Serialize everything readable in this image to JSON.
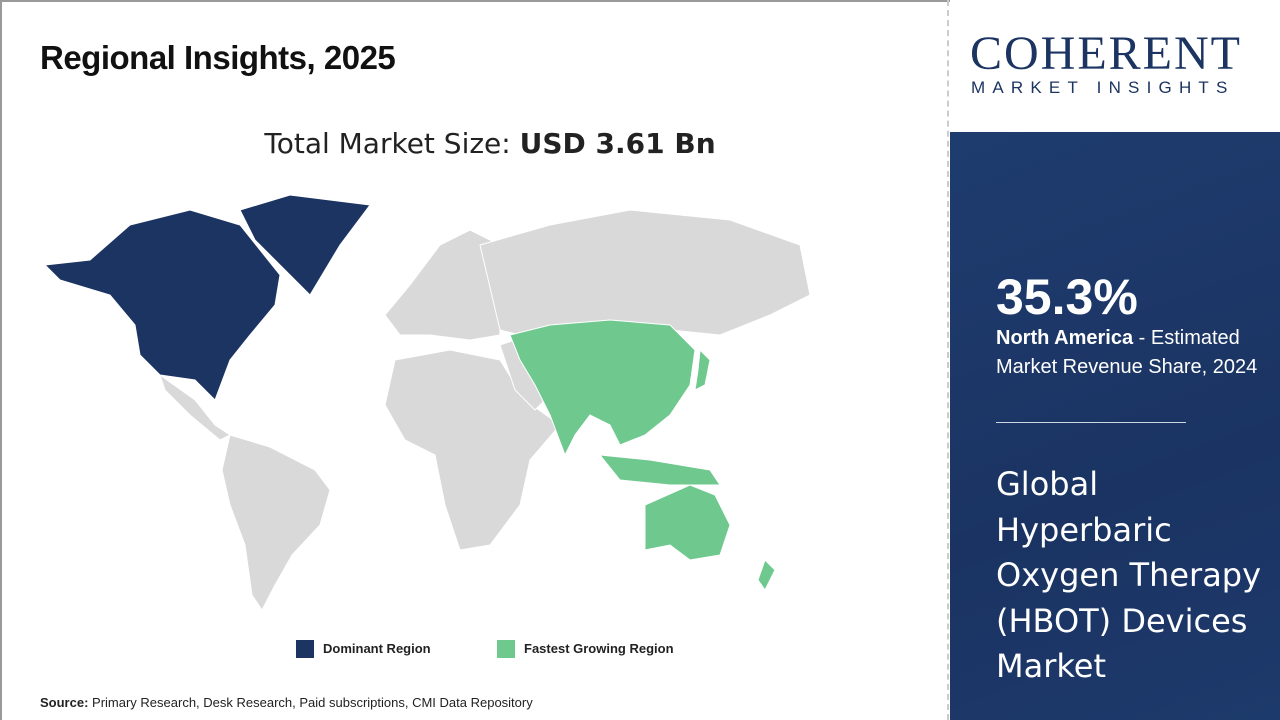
{
  "title": "Regional Insights, 2025",
  "total_label": "Total Market Size: ",
  "total_value": "USD 3.61 Bn",
  "legend": [
    {
      "label": "Dominant Region",
      "color": "#1c3461"
    },
    {
      "label": "Fastest Growing Region",
      "color": "#6fc98f"
    }
  ],
  "source_label": "Source:",
  "source_text": " Primary Research, Desk Research, Paid subscriptions, CMI Data Repository",
  "logo": {
    "big": "COHERENT",
    "small": "MARKET INSIGHTS"
  },
  "panel": {
    "percent": "35.3%",
    "region": "North America",
    "region_desc": " - Estimated Market Revenue Share, 2024",
    "market_name": "Global Hyperbaric Oxygen Therapy (HBOT) Devices Market"
  },
  "colors": {
    "dominant": "#1c3461",
    "fastest": "#6fc98f",
    "other": "#d9d9d9",
    "panel": "#1f3c6f"
  }
}
